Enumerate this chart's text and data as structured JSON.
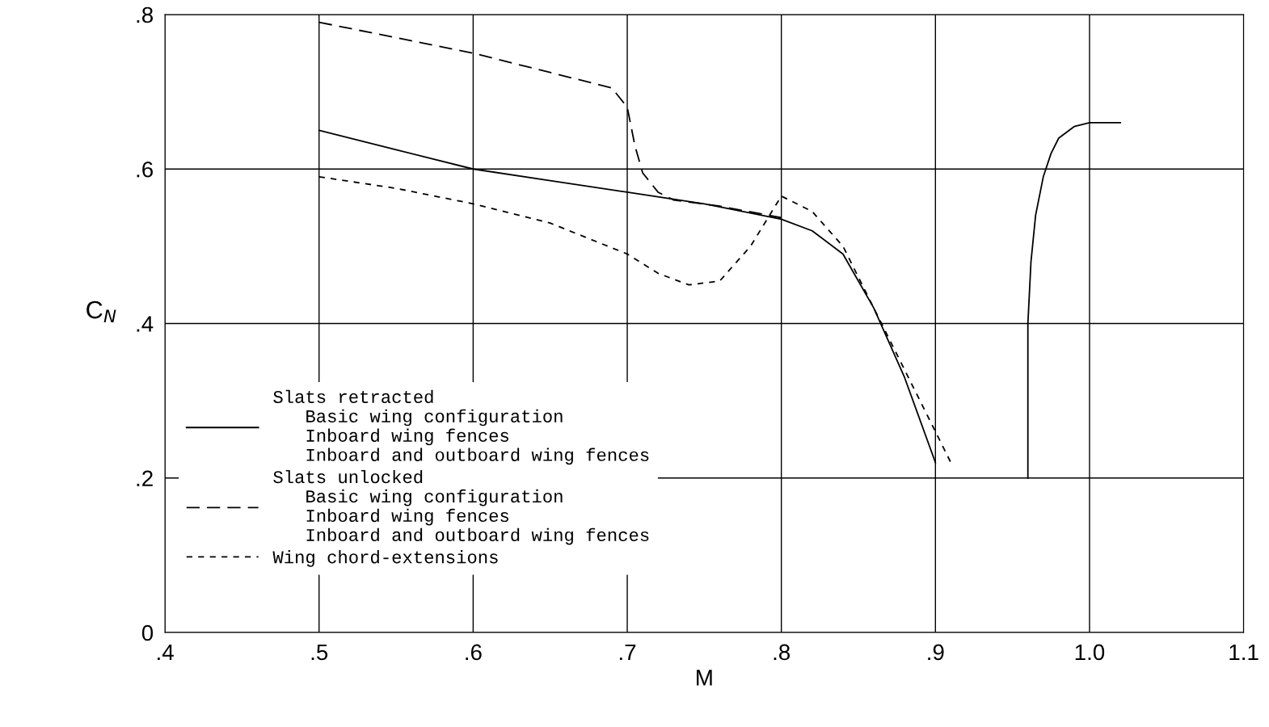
{
  "chart_data": {
    "type": "line",
    "xlabel": "M",
    "ylabel": "C$_{N}$",
    "xlim": [
      0.4,
      1.1
    ],
    "ylim": [
      0,
      0.8
    ],
    "xticks": [
      {
        "value": 0.4,
        "label": ".4"
      },
      {
        "value": 0.5,
        "label": ".5"
      },
      {
        "value": 0.6,
        "label": ".6"
      },
      {
        "value": 0.7,
        "label": ".7"
      },
      {
        "value": 0.8,
        "label": ".8"
      },
      {
        "value": 0.9,
        "label": ".9"
      },
      {
        "value": 1.0,
        "label": "1.0"
      },
      {
        "value": 1.1,
        "label": "1.1"
      }
    ],
    "yticks": [
      0,
      {
        "value": 0.2,
        "label": ".2"
      },
      {
        "value": 0.4,
        "label": ".4"
      },
      {
        "value": 0.6,
        "label": ".6"
      },
      {
        "value": 0.8,
        "label": ".8"
      }
    ],
    "grid": true,
    "legend": "bottom left",
    "series": [
      {
        "name": "Slats retracted\n   Basic wing configuration\n   Inboard wing fences\n   Inboard and outboard wing fences",
        "color": "#000000",
        "line_style": "solid",
        "x": [
          0.5,
          0.55,
          0.6,
          0.65,
          0.7,
          0.75,
          0.8,
          0.82,
          0.84,
          0.86,
          0.88,
          0.9
        ],
        "values": [
          0.65,
          0.625,
          0.6,
          0.585,
          0.57,
          0.555,
          0.535,
          0.52,
          0.49,
          0.42,
          0.33,
          0.22
        ]
      },
      {
        "name": "Slats unlocked\n   Basic wing configuration\n   Inboard wing fences\n   Inboard and outboard wing fences",
        "color": "#000000",
        "line_style": "dashed",
        "x": [
          0.5,
          0.55,
          0.6,
          0.65,
          0.69,
          0.7,
          0.705,
          0.71,
          0.72,
          0.73,
          0.76,
          0.8
        ],
        "values": [
          0.79,
          0.77,
          0.75,
          0.725,
          0.705,
          0.68,
          0.63,
          0.595,
          0.57,
          0.56,
          0.552,
          0.537
        ]
      },
      {
        "name": "Wing chord-extensions",
        "color": "#000000",
        "line_style": "dotted",
        "x": [
          0.5,
          0.55,
          0.6,
          0.65,
          0.7,
          0.72,
          0.74,
          0.76,
          0.78,
          0.8,
          0.82,
          0.84,
          0.86,
          0.88,
          0.9,
          0.91
        ],
        "values": [
          0.59,
          0.575,
          0.555,
          0.53,
          0.49,
          0.465,
          0.45,
          0.455,
          0.5,
          0.565,
          0.545,
          0.5,
          0.42,
          0.34,
          0.26,
          0.22
        ]
      },
      {
        "color": "#000000",
        "line_style": "solid",
        "x": [
          0.96,
          0.96,
          0.962,
          0.965,
          0.97,
          0.975,
          0.98,
          0.99,
          1.0,
          1.02
        ],
        "values": [
          0.2,
          0.4,
          0.48,
          0.54,
          0.59,
          0.62,
          0.64,
          0.655,
          0.66,
          0.66
        ]
      }
    ]
  }
}
